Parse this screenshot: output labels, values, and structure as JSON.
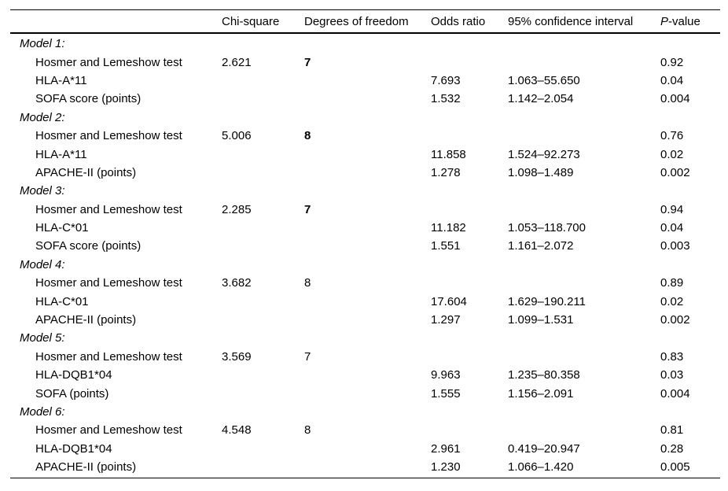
{
  "table": {
    "header": {
      "chi_square": "Chi-square",
      "df": "Degrees of freedom",
      "odds_ratio": "Odds ratio",
      "ci": "95% confidence interval",
      "p_italic": "P",
      "p_rest": "-value"
    },
    "rows": [
      {
        "type": "model-heading",
        "label": "Model 1:"
      },
      {
        "type": "test",
        "label": "Hosmer and Lemeshow test",
        "chi_square": "2.621",
        "df": "7",
        "p_value": "0.92"
      },
      {
        "type": "variable",
        "label": "HLA-A*11",
        "odds_ratio": "7.693",
        "ci": "1.063–55.650",
        "p_value": "0.04"
      },
      {
        "type": "variable",
        "label": "SOFA score (points)",
        "odds_ratio": "1.532",
        "ci": "1.142–2.054",
        "p_value": "0.004"
      },
      {
        "type": "model-heading",
        "label": "Model 2:"
      },
      {
        "type": "test",
        "label": "Hosmer and Lemeshow test",
        "chi_square": "5.006",
        "df": "8",
        "p_value": "0.76"
      },
      {
        "type": "variable",
        "label": "HLA-A*11",
        "odds_ratio": "11.858",
        "ci": "1.524–92.273",
        "p_value": "0.02"
      },
      {
        "type": "variable",
        "label": "APACHE-II (points)",
        "odds_ratio": "1.278",
        "ci": "1.098–1.489",
        "p_value": "0.002"
      },
      {
        "type": "model-heading",
        "label": "Model 3:"
      },
      {
        "type": "test",
        "label": "Hosmer and Lemeshow test",
        "chi_square": "2.285",
        "df": "7",
        "p_value": "0.94"
      },
      {
        "type": "variable",
        "label": "HLA-C*01",
        "odds_ratio": "11.182",
        "ci": "1.053–118.700",
        "p_value": "0.04"
      },
      {
        "type": "variable",
        "label": "SOFA score (points)",
        "odds_ratio": "1.551",
        "ci": "1.161–2.072",
        "p_value": "0.003"
      },
      {
        "type": "model-heading",
        "label": "Model 4:"
      },
      {
        "type": "test",
        "label": "Hosmer and Lemeshow test",
        "chi_square": "3.682",
        "df": "8",
        "p_value": "0.89"
      },
      {
        "type": "variable",
        "label": "HLA-C*01",
        "odds_ratio": "17.604",
        "ci": "1.629–190.211",
        "p_value": "0.02"
      },
      {
        "type": "variable",
        "label": "APACHE-II (points)",
        "odds_ratio": "1.297",
        "ci": "1.099–1.531",
        "p_value": "0.002"
      },
      {
        "type": "model-heading",
        "label": "Model 5:"
      },
      {
        "type": "test",
        "label": "Hosmer and Lemeshow test",
        "chi_square": "3.569",
        "df": "7",
        "p_value": "0.83"
      },
      {
        "type": "variable",
        "label": "HLA-DQB1*04",
        "odds_ratio": "9.963",
        "ci": "1.235–80.358",
        "p_value": "0.03"
      },
      {
        "type": "variable",
        "label": "SOFA (points)",
        "odds_ratio": "1.555",
        "ci": "1.156–2.091",
        "p_value": "0.004"
      },
      {
        "type": "model-heading",
        "label": "Model 6:"
      },
      {
        "type": "test",
        "label": "Hosmer and Lemeshow test",
        "chi_square": "4.548",
        "df": "8",
        "p_value": "0.81"
      },
      {
        "type": "variable",
        "label": "HLA-DQB1*04",
        "odds_ratio": "2.961",
        "ci": "0.419–20.947",
        "p_value": "0.28"
      },
      {
        "type": "variable",
        "label": "APACHE-II (points)",
        "odds_ratio": "1.230",
        "ci": "1.066–1.420",
        "p_value": "0.005"
      }
    ]
  }
}
